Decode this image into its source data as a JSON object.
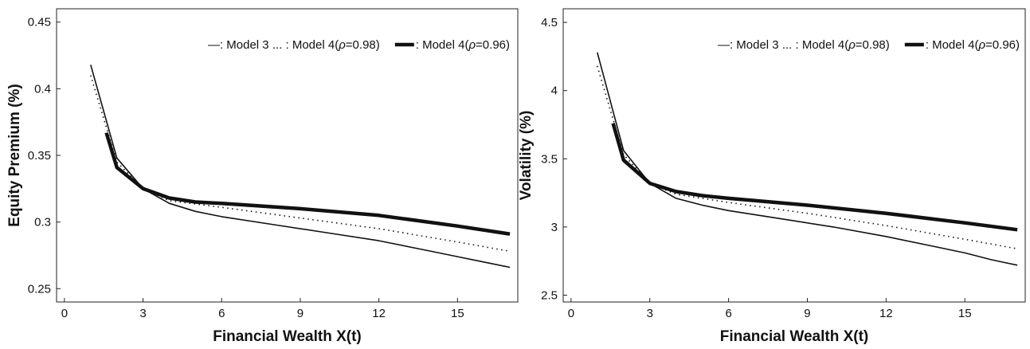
{
  "chart_data": [
    {
      "type": "line",
      "title": "",
      "xlabel": "Financial Wealth  X(t)",
      "ylabel": "Equity Premium (%)",
      "xlim": [
        -0.3,
        17.3
      ],
      "ylim": [
        0.24,
        0.46
      ],
      "xticks": [
        0,
        3,
        6,
        9,
        12,
        15
      ],
      "yticks": [
        0.25,
        0.3,
        0.35,
        0.4,
        0.45
      ],
      "ytick_labels": [
        "0.25",
        "0.3",
        "0.35",
        "0.4",
        "0.45"
      ],
      "grid": false,
      "legend_position": "top-right",
      "legend": [
        {
          "marker": "—",
          "text": ": Model 3"
        },
        {
          "marker": "...",
          "text": ": Model 4(",
          "greek": "ρ",
          "suffix": "=0.98)"
        },
        {
          "marker": "",
          "text": ": Model 4(",
          "greek": "ρ",
          "suffix": "=0.96)"
        }
      ],
      "series": [
        {
          "name": "Model 3",
          "style": "solid-thin",
          "x": [
            1,
            2,
            3,
            4,
            5,
            6,
            8,
            10,
            12,
            14,
            15,
            16,
            17
          ],
          "y": [
            0.418,
            0.348,
            0.325,
            0.314,
            0.308,
            0.304,
            0.298,
            0.292,
            0.286,
            0.278,
            0.274,
            0.27,
            0.266
          ]
        },
        {
          "name": "Model 4(ρ=0.98)",
          "style": "dotted",
          "x": [
            1,
            2,
            3,
            4,
            6,
            9,
            12,
            15,
            17
          ],
          "y": [
            0.41,
            0.345,
            0.325,
            0.316,
            0.311,
            0.303,
            0.295,
            0.285,
            0.278
          ]
        },
        {
          "name": "Model 4(ρ=0.96)",
          "style": "solid-thick",
          "x": [
            1.6,
            2,
            3,
            4,
            5,
            6,
            9,
            12,
            15,
            17
          ],
          "y": [
            0.367,
            0.341,
            0.325,
            0.318,
            0.315,
            0.314,
            0.31,
            0.305,
            0.297,
            0.291
          ]
        }
      ]
    },
    {
      "type": "line",
      "title": "",
      "xlabel": "Financial Wealth  X(t)",
      "ylabel": "Volatility (%)",
      "xlim": [
        -0.3,
        17.3
      ],
      "ylim": [
        2.45,
        4.6
      ],
      "xticks": [
        0,
        3,
        6,
        9,
        12,
        15
      ],
      "yticks": [
        2.5,
        3,
        3.5,
        4,
        4.5
      ],
      "ytick_labels": [
        "2.5",
        "3",
        "3.5",
        "4",
        "4.5"
      ],
      "grid": false,
      "legend_position": "top-right",
      "legend": [
        {
          "marker": "—",
          "text": ": Model 3"
        },
        {
          "marker": "...",
          "text": ": Model 4(",
          "greek": "ρ",
          "suffix": "=0.98)"
        },
        {
          "marker": "",
          "text": ": Model 4(",
          "greek": "ρ",
          "suffix": "=0.96)"
        }
      ],
      "series": [
        {
          "name": "Model 3",
          "style": "solid-thin",
          "x": [
            1,
            2,
            3,
            4,
            5,
            6,
            8,
            10,
            12,
            14,
            15,
            16,
            17
          ],
          "y": [
            4.28,
            3.56,
            3.32,
            3.21,
            3.16,
            3.12,
            3.06,
            3.0,
            2.93,
            2.85,
            2.81,
            2.76,
            2.72
          ]
        },
        {
          "name": "Model 4(ρ=0.98)",
          "style": "dotted",
          "x": [
            1,
            2,
            3,
            4,
            6,
            9,
            12,
            15,
            17
          ],
          "y": [
            4.18,
            3.53,
            3.32,
            3.24,
            3.18,
            3.1,
            3.01,
            2.91,
            2.84
          ]
        },
        {
          "name": "Model 4(ρ=0.96)",
          "style": "solid-thick",
          "x": [
            1.6,
            2,
            3,
            4,
            5,
            6,
            9,
            12,
            15,
            17
          ],
          "y": [
            3.76,
            3.49,
            3.32,
            3.26,
            3.23,
            3.21,
            3.16,
            3.1,
            3.03,
            2.98
          ]
        }
      ]
    }
  ]
}
